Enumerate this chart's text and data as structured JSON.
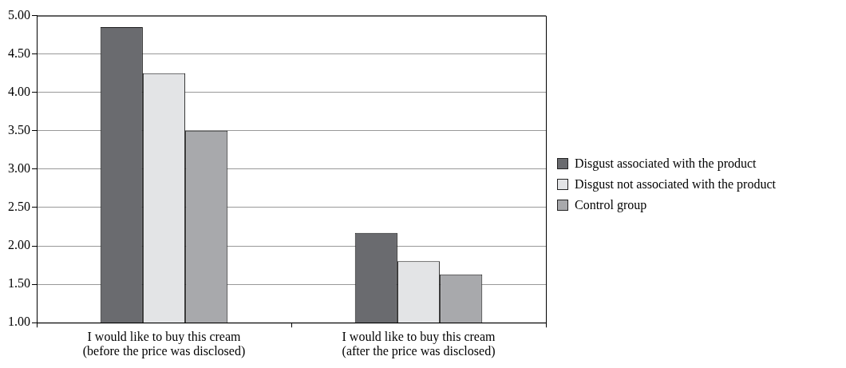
{
  "chart_data": {
    "type": "bar",
    "categories": [
      "I would like to buy this cream (before the price was disclosed)",
      "I would like to buy this cream (after the price was disclosed)"
    ],
    "series": [
      {
        "name": "Disgust associated with the product",
        "color": "#6a6b6f",
        "values": [
          4.85,
          2.17
        ]
      },
      {
        "name": "Disgust not associated with the product",
        "color": "#e3e4e6",
        "values": [
          4.25,
          1.8
        ]
      },
      {
        "name": "Control group",
        "color": "#a8a9ac",
        "values": [
          3.5,
          1.63
        ]
      }
    ],
    "ylim": [
      1,
      5
    ],
    "yticks": [
      {
        "value": 1,
        "label": "1.00"
      },
      {
        "value": 1.5,
        "label": "1.50"
      },
      {
        "value": 2,
        "label": "2.00"
      },
      {
        "value": 2.5,
        "label": "2.50"
      },
      {
        "value": 3,
        "label": "3.00"
      },
      {
        "value": 3.5,
        "label": "3.50"
      },
      {
        "value": 4,
        "label": "4.00"
      },
      {
        "value": 4.5,
        "label": "4.50"
      },
      {
        "value": 5,
        "label": "5.00"
      }
    ],
    "grid": "y",
    "legend": "right"
  }
}
